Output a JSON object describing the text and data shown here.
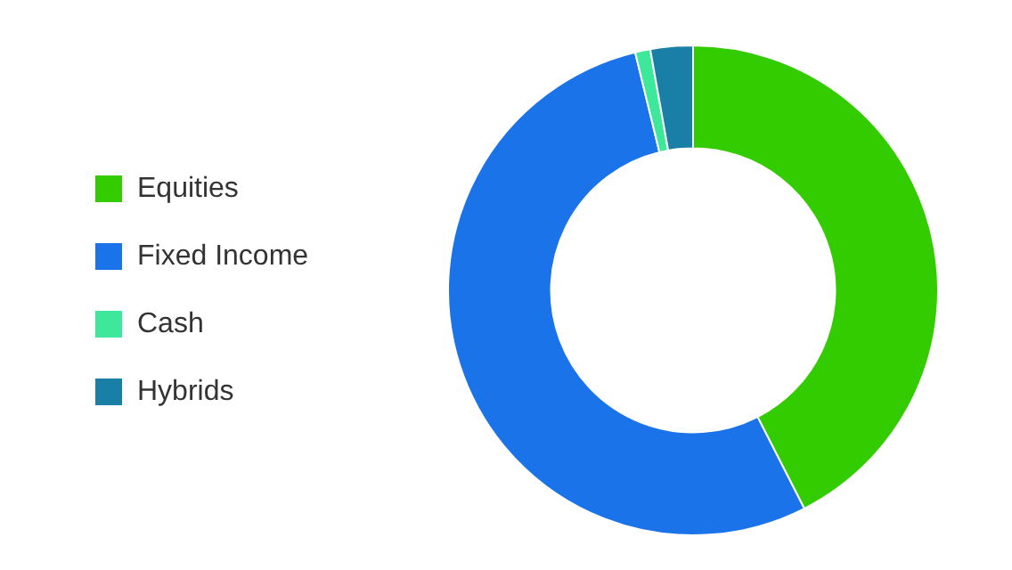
{
  "chart_data": {
    "type": "donut",
    "categories": [
      "Equities",
      "Fixed Income",
      "Cash",
      "Hybrids"
    ],
    "values": [
      42.5,
      53.7,
      1,
      2.8
    ],
    "colors": [
      "#33cc00",
      "#1a73e8",
      "#3ee89a",
      "#1a7fa6"
    ],
    "legend": "left"
  }
}
